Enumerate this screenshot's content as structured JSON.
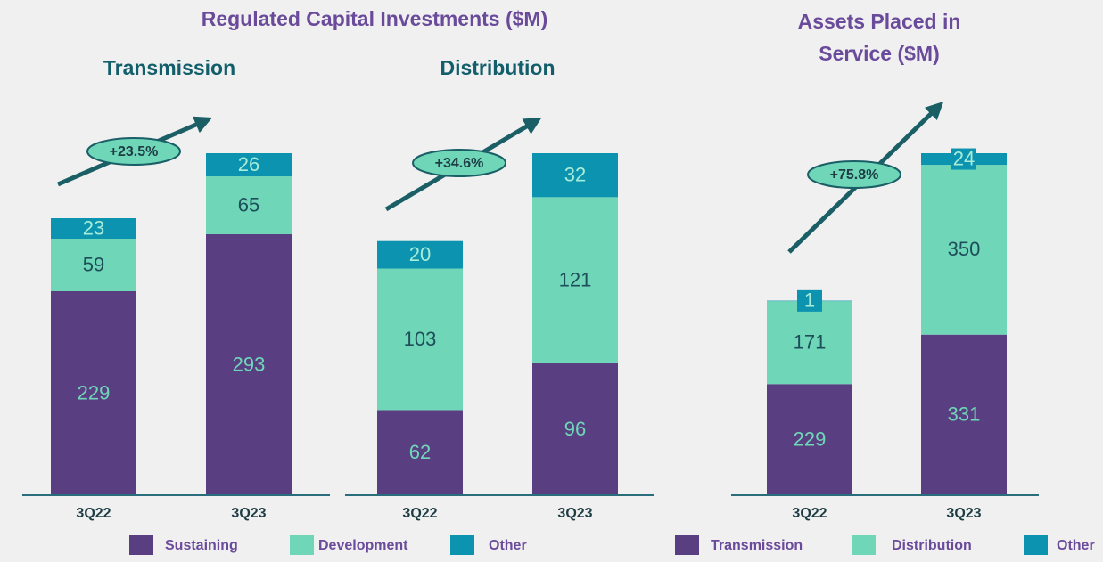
{
  "header": {
    "title": "Regulated Capital Investments ($M)"
  },
  "chart_data": [
    {
      "type": "stacked_bar",
      "title": "Transmission",
      "categories": [
        "3Q22",
        "3Q23"
      ],
      "series": [
        {
          "name": "Sustaining",
          "color": "#5a3e82",
          "values": [
            229,
            293
          ]
        },
        {
          "name": "Development",
          "color": "#6fd6b8",
          "values": [
            59,
            65
          ]
        },
        {
          "name": "Other",
          "color": "#0b93b0",
          "values": [
            23,
            26
          ]
        }
      ],
      "annotations": [
        "+23.5%"
      ]
    },
    {
      "type": "stacked_bar",
      "title": "Distribution",
      "categories": [
        "3Q22",
        "3Q23"
      ],
      "series": [
        {
          "name": "Sustaining",
          "color": "#5a3e82",
          "values": [
            62,
            96
          ]
        },
        {
          "name": "Development",
          "color": "#6fd6b8",
          "values": [
            103,
            121
          ]
        },
        {
          "name": "Other",
          "color": "#0b93b0",
          "values": [
            20,
            32
          ]
        }
      ],
      "annotations": [
        "+34.6%"
      ]
    },
    {
      "type": "stacked_bar",
      "title": "Assets Placed in Service ($M)",
      "categories": [
        "3Q22",
        "3Q23"
      ],
      "series": [
        {
          "name": "Transmission",
          "color": "#5a3e82",
          "values": [
            229,
            331
          ]
        },
        {
          "name": "Distribution",
          "color": "#6fd6b8",
          "values": [
            171,
            350
          ]
        },
        {
          "name": "Other",
          "color": "#0b93b0",
          "values": [
            1,
            24
          ]
        }
      ],
      "annotations": [
        "+75.8%"
      ]
    }
  ]
}
